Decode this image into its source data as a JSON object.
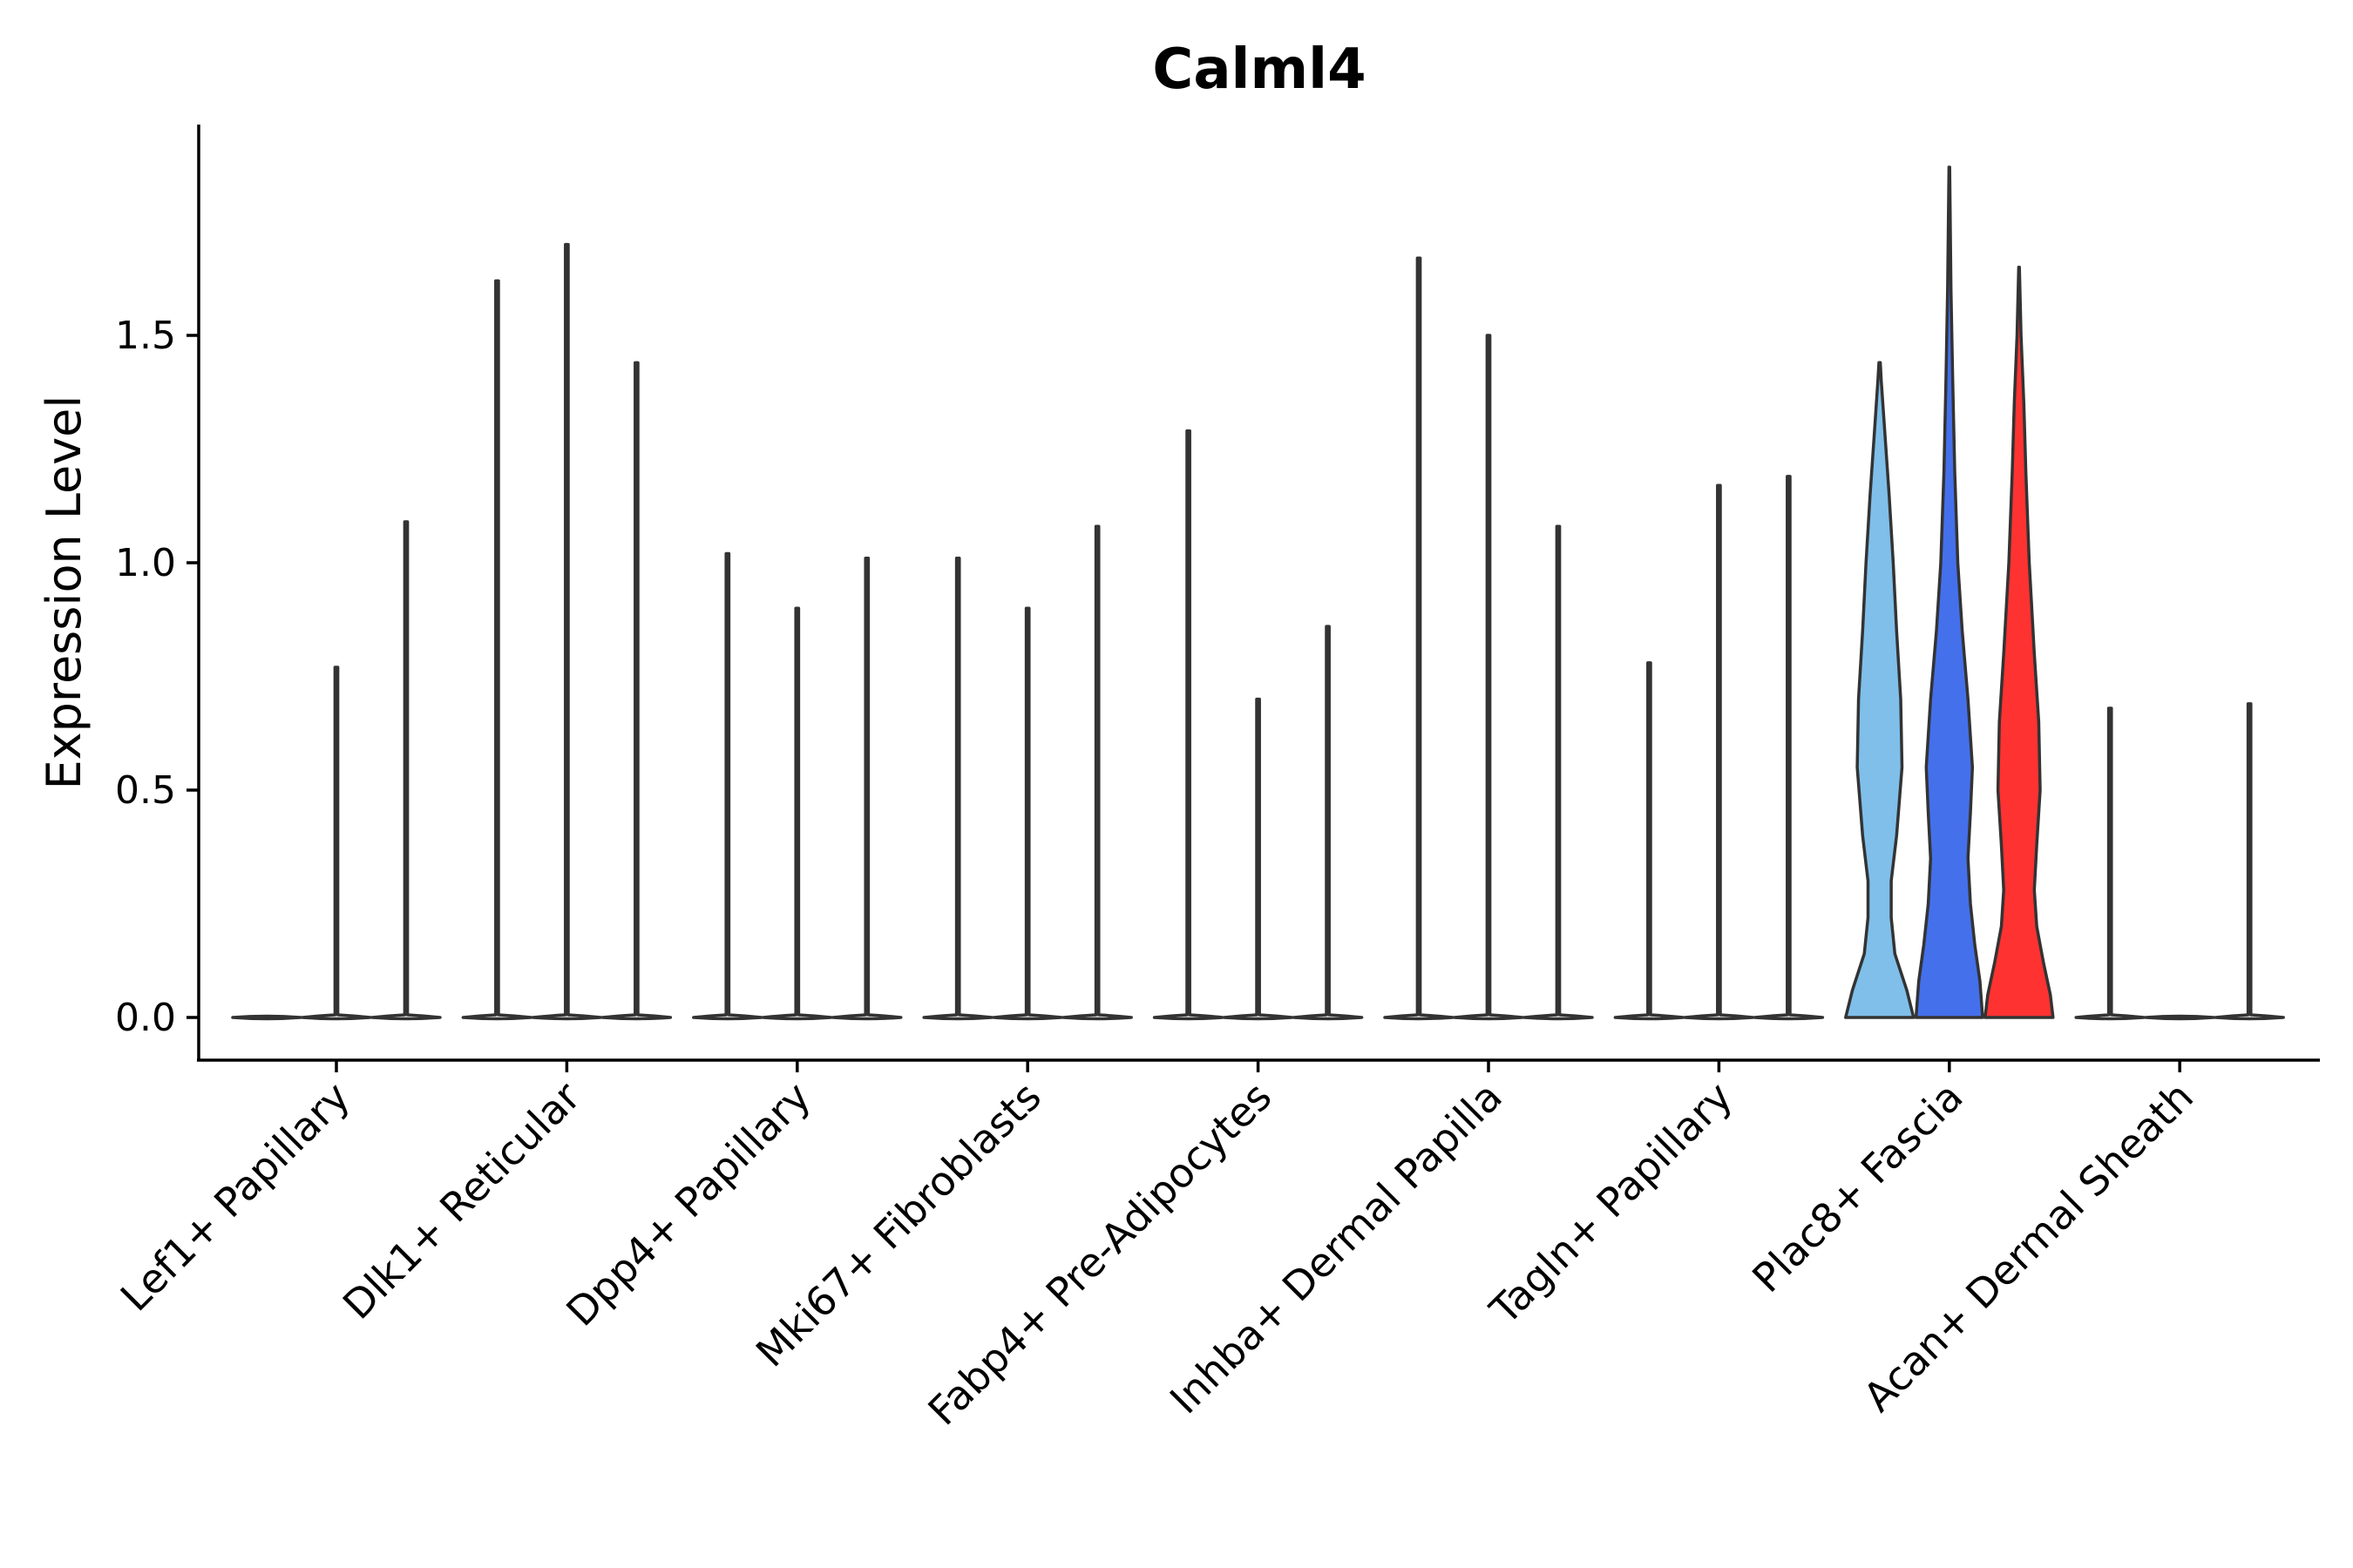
{
  "chart_data": {
    "type": "violin",
    "title": "Calml4",
    "ylabel": "Expression Level",
    "xlabel": "",
    "ylim": [
      -0.09,
      1.97
    ],
    "yticks": [
      0.0,
      0.5,
      1.0,
      1.5
    ],
    "ytick_labels": [
      "0.0",
      "0.5",
      "1.0",
      "1.5"
    ],
    "grid": false,
    "legend": "none",
    "categories": [
      "Lef1+ Papillary",
      "Dlk1+ Reticular",
      "Dpp4+ Papillary",
      "Mki67+ Fibroblasts",
      "Fabp4+ Pre-Adipocytes",
      "Inhba+ Dermal Papilla",
      "Tagln+ Papillary",
      "Plac8+ Fascia",
      "Acan+ Dermal Sheath"
    ],
    "groups": [
      {
        "category": "Lef1+ Papillary",
        "violins": [
          {
            "max": 0.0,
            "color": "#ffffff"
          },
          {
            "max": 0.77,
            "color": "#ffffff"
          },
          {
            "max": 1.09,
            "color": "#ffffff"
          }
        ]
      },
      {
        "category": "Dlk1+ Reticular",
        "violins": [
          {
            "max": 1.62,
            "color": "#ffffff"
          },
          {
            "max": 1.7,
            "color": "#ffffff"
          },
          {
            "max": 1.44,
            "color": "#ffffff"
          }
        ]
      },
      {
        "category": "Dpp4+ Papillary",
        "violins": [
          {
            "max": 1.02,
            "color": "#ffffff"
          },
          {
            "max": 0.9,
            "color": "#ffffff"
          },
          {
            "max": 1.01,
            "color": "#ffffff"
          }
        ]
      },
      {
        "category": "Mki67+ Fibroblasts",
        "violins": [
          {
            "max": 1.01,
            "color": "#ffffff"
          },
          {
            "max": 0.9,
            "color": "#ffffff"
          },
          {
            "max": 1.08,
            "color": "#ffffff"
          }
        ]
      },
      {
        "category": "Fabp4+ Pre-Adipocytes",
        "violins": [
          {
            "max": 1.29,
            "color": "#ffffff"
          },
          {
            "max": 0.7,
            "color": "#ffffff"
          },
          {
            "max": 0.86,
            "color": "#ffffff"
          }
        ]
      },
      {
        "category": "Inhba+ Dermal Papilla",
        "violins": [
          {
            "max": 1.67,
            "color": "#ffffff"
          },
          {
            "max": 1.5,
            "color": "#ffffff"
          },
          {
            "max": 1.08,
            "color": "#ffffff"
          }
        ]
      },
      {
        "category": "Tagln+ Papillary",
        "violins": [
          {
            "max": 0.78,
            "color": "#ffffff"
          },
          {
            "max": 1.17,
            "color": "#ffffff"
          },
          {
            "max": 1.19,
            "color": "#ffffff"
          }
        ]
      },
      {
        "category": "Plac8+ Fascia",
        "violins": [
          {
            "max": 1.44,
            "color": "#7fbfea",
            "density": [
              [
                0.0,
                1.0
              ],
              [
                0.06,
                0.8
              ],
              [
                0.14,
                0.45
              ],
              [
                0.22,
                0.34
              ],
              [
                0.3,
                0.34
              ],
              [
                0.4,
                0.5
              ],
              [
                0.55,
                0.66
              ],
              [
                0.7,
                0.62
              ],
              [
                0.85,
                0.5
              ],
              [
                1.0,
                0.4
              ],
              [
                1.15,
                0.28
              ],
              [
                1.3,
                0.14
              ],
              [
                1.4,
                0.05
              ],
              [
                1.44,
                0.02
              ]
            ]
          },
          {
            "max": 1.87,
            "color": "#4470ec",
            "density": [
              [
                0.0,
                0.98
              ],
              [
                0.08,
                0.9
              ],
              [
                0.16,
                0.75
              ],
              [
                0.25,
                0.62
              ],
              [
                0.35,
                0.55
              ],
              [
                0.45,
                0.62
              ],
              [
                0.55,
                0.68
              ],
              [
                0.7,
                0.55
              ],
              [
                0.85,
                0.38
              ],
              [
                1.0,
                0.25
              ],
              [
                1.2,
                0.16
              ],
              [
                1.4,
                0.1
              ],
              [
                1.6,
                0.05
              ],
              [
                1.87,
                0.01
              ]
            ]
          },
          {
            "max": 1.65,
            "color": "#ff3232",
            "density": [
              [
                0.0,
                1.0
              ],
              [
                0.05,
                0.92
              ],
              [
                0.12,
                0.72
              ],
              [
                0.2,
                0.52
              ],
              [
                0.28,
                0.45
              ],
              [
                0.38,
                0.52
              ],
              [
                0.5,
                0.62
              ],
              [
                0.65,
                0.58
              ],
              [
                0.8,
                0.45
              ],
              [
                1.0,
                0.3
              ],
              [
                1.2,
                0.2
              ],
              [
                1.35,
                0.14
              ],
              [
                1.5,
                0.06
              ],
              [
                1.65,
                0.01
              ]
            ]
          }
        ]
      },
      {
        "category": "Acan+ Dermal Sheath",
        "violins": [
          {
            "max": 0.68,
            "color": "#ffffff"
          },
          {
            "max": 0.0,
            "color": "#ffffff"
          },
          {
            "max": 0.69,
            "color": "#ffffff"
          }
        ]
      }
    ]
  }
}
